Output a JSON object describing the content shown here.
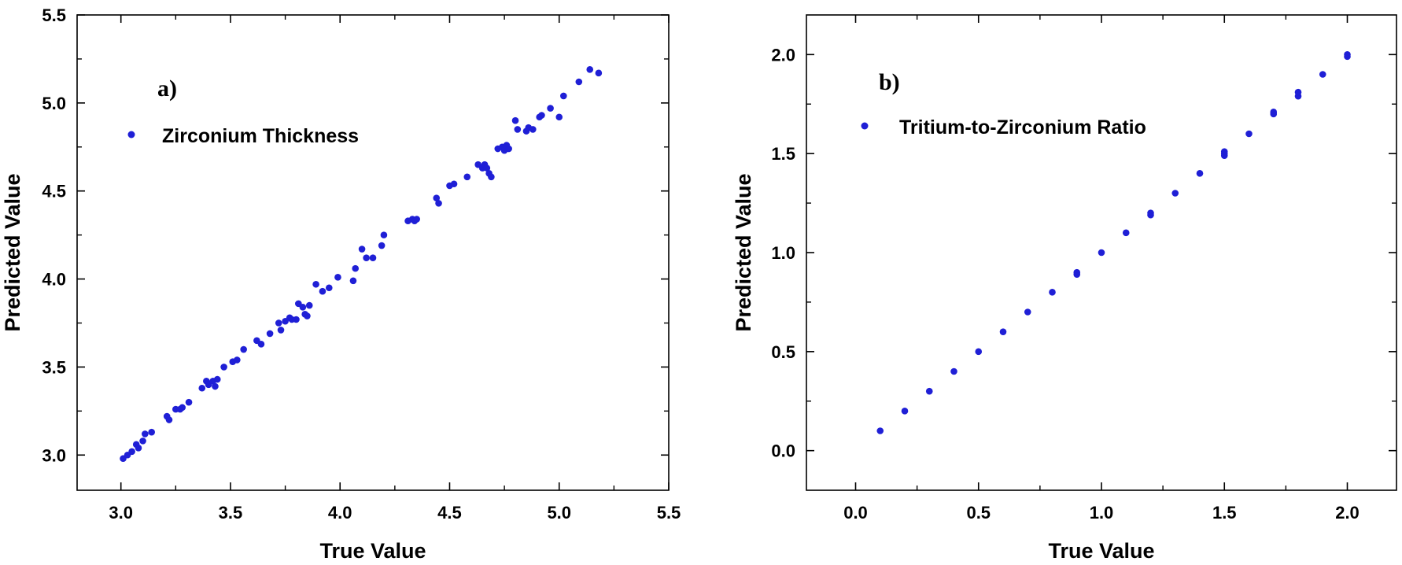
{
  "chart_data": [
    {
      "type": "scatter",
      "panel_label": "a)",
      "xlabel": "True Value",
      "ylabel": "Predicted Value",
      "xlim": [
        2.8,
        5.5
      ],
      "ylim": [
        2.8,
        5.5
      ],
      "xticks": [
        "3.0",
        "3.5",
        "4.0",
        "4.5",
        "5.0",
        "5.5"
      ],
      "yticks": [
        "3.0",
        "3.5",
        "4.0",
        "4.5",
        "5.0",
        "5.5"
      ],
      "grid": false,
      "legend_position": "top-left",
      "marker_color": "#1f1fd6",
      "series": [
        {
          "name": "Zirconium Thickness",
          "x": [
            3.01,
            3.03,
            3.05,
            3.07,
            3.08,
            3.1,
            3.11,
            3.14,
            3.21,
            3.22,
            3.25,
            3.27,
            3.28,
            3.31,
            3.37,
            3.39,
            3.4,
            3.42,
            3.43,
            3.44,
            3.47,
            3.51,
            3.53,
            3.56,
            3.62,
            3.64,
            3.68,
            3.72,
            3.73,
            3.75,
            3.77,
            3.78,
            3.8,
            3.81,
            3.83,
            3.84,
            3.85,
            3.86,
            3.89,
            3.92,
            3.95,
            3.99,
            4.06,
            4.07,
            4.1,
            4.12,
            4.15,
            4.19,
            4.2,
            4.31,
            4.33,
            4.34,
            4.35,
            4.44,
            4.45,
            4.5,
            4.52,
            4.58,
            4.63,
            4.65,
            4.66,
            4.67,
            4.68,
            4.69,
            4.72,
            4.74,
            4.75,
            4.76,
            4.77,
            4.8,
            4.81,
            4.85,
            4.86,
            4.88,
            4.91,
            4.92,
            4.96,
            5.0,
            5.02,
            5.09,
            5.14,
            5.18
          ],
          "y": [
            2.98,
            3.0,
            3.02,
            3.06,
            3.04,
            3.08,
            3.12,
            3.13,
            3.22,
            3.2,
            3.26,
            3.26,
            3.27,
            3.3,
            3.38,
            3.42,
            3.4,
            3.42,
            3.39,
            3.43,
            3.5,
            3.53,
            3.54,
            3.6,
            3.65,
            3.63,
            3.69,
            3.75,
            3.71,
            3.76,
            3.78,
            3.77,
            3.77,
            3.86,
            3.84,
            3.8,
            3.79,
            3.85,
            3.97,
            3.93,
            3.95,
            4.01,
            3.99,
            4.06,
            4.17,
            4.12,
            4.12,
            4.19,
            4.25,
            4.33,
            4.34,
            4.33,
            4.34,
            4.46,
            4.43,
            4.53,
            4.54,
            4.58,
            4.65,
            4.63,
            4.65,
            4.63,
            4.6,
            4.58,
            4.74,
            4.75,
            4.73,
            4.76,
            4.74,
            4.9,
            4.85,
            4.84,
            4.86,
            4.85,
            4.92,
            4.93,
            4.97,
            4.92,
            5.04,
            5.12,
            5.19,
            5.17
          ]
        }
      ]
    },
    {
      "type": "scatter",
      "panel_label": "b)",
      "xlabel": "True Value",
      "ylabel": "Predicted Value",
      "xlim": [
        -0.2,
        2.2
      ],
      "ylim": [
        -0.2,
        2.2
      ],
      "xticks": [
        "0.0",
        "0.5",
        "1.0",
        "1.5",
        "2.0"
      ],
      "yticks": [
        "0.0",
        "0.5",
        "1.0",
        "1.5",
        "2.0"
      ],
      "grid": false,
      "legend_position": "top-left",
      "marker_color": "#1f1fd6",
      "series": [
        {
          "name": "Tritium-to-Zirconium Ratio",
          "x": [
            0.1,
            0.2,
            0.3,
            0.4,
            0.5,
            0.6,
            0.7,
            0.8,
            0.9,
            0.9,
            1.0,
            1.1,
            1.2,
            1.2,
            1.3,
            1.4,
            1.5,
            1.5,
            1.5,
            1.6,
            1.7,
            1.7,
            1.8,
            1.8,
            1.9,
            2.0,
            2.0
          ],
          "y": [
            0.1,
            0.2,
            0.3,
            0.4,
            0.5,
            0.6,
            0.7,
            0.8,
            0.89,
            0.9,
            1.0,
            1.1,
            1.19,
            1.2,
            1.3,
            1.4,
            1.49,
            1.5,
            1.51,
            1.6,
            1.7,
            1.71,
            1.79,
            1.81,
            1.9,
            1.99,
            2.0
          ]
        }
      ]
    }
  ]
}
